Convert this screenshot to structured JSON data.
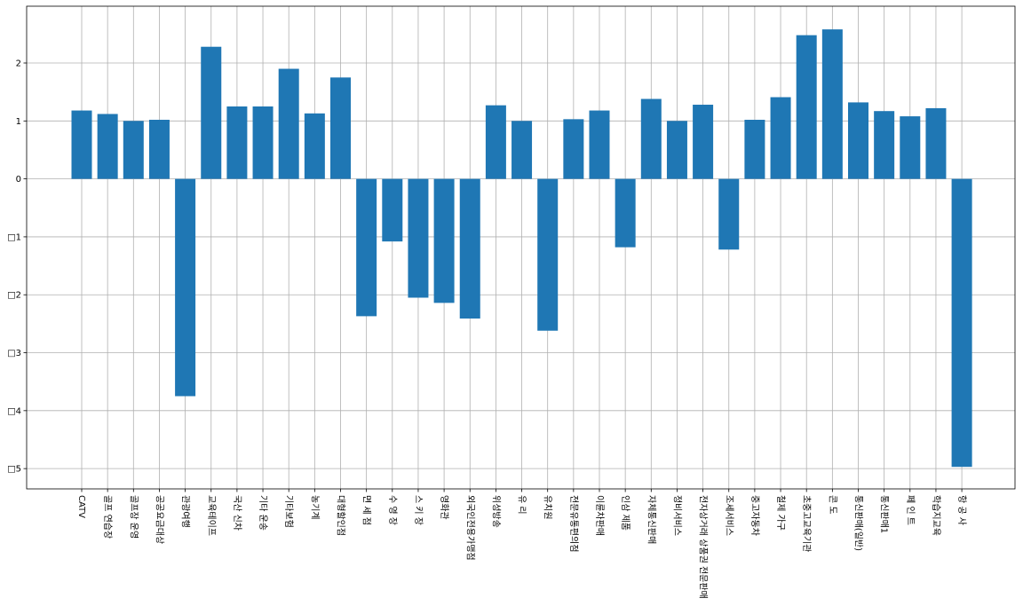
{
  "chart_data": {
    "type": "bar",
    "title": "",
    "xlabel": "",
    "ylabel": "",
    "ylim": [
      -5.35,
      2.98
    ],
    "grid": true,
    "yticks": [
      {
        "value": 2,
        "label": "2"
      },
      {
        "value": 1,
        "label": "1"
      },
      {
        "value": 0,
        "label": "0"
      },
      {
        "value": -1,
        "label": "□1"
      },
      {
        "value": -2,
        "label": "□2"
      },
      {
        "value": -3,
        "label": "□3"
      },
      {
        "value": -4,
        "label": "□4"
      },
      {
        "value": -5,
        "label": "□5"
      }
    ],
    "categories": [
      "CATV",
      "골프 연습장",
      "골프장 운영",
      "공공요금대상",
      "관광여행",
      "교육테이프",
      "국산 신차",
      "기타 운송",
      "기타보험",
      "농기계",
      "대형할인점",
      "면 세 점",
      "수 영 장",
      "스 키 장",
      "영화관",
      "외국인전용가맹점",
      "위성방송",
      "유 리",
      "유치원",
      "전문유통편의점",
      "이륜차판매",
      "인삼 제품",
      "자체통신판매",
      "정비서비스",
      "전자상거래 상품권 전문판매",
      "조세서비스",
      "중고자동차",
      "철제 가구",
      "초중고교육기관",
      "콘 도",
      "통신판매(일반)",
      "통신판매1",
      "페 인 트",
      "학습지교육",
      "항 공 사"
    ],
    "values": [
      1.18,
      1.12,
      1.0,
      1.02,
      -3.75,
      2.28,
      1.25,
      1.25,
      1.9,
      1.13,
      1.75,
      -2.37,
      -1.08,
      -2.05,
      -2.14,
      -2.41,
      1.27,
      1.0,
      -2.62,
      1.03,
      1.18,
      -1.18,
      1.38,
      1.0,
      1.28,
      -1.22,
      1.02,
      1.41,
      2.48,
      2.58,
      1.32,
      1.17,
      1.08,
      1.22,
      -4.97
    ],
    "color": "#1f77b4"
  }
}
